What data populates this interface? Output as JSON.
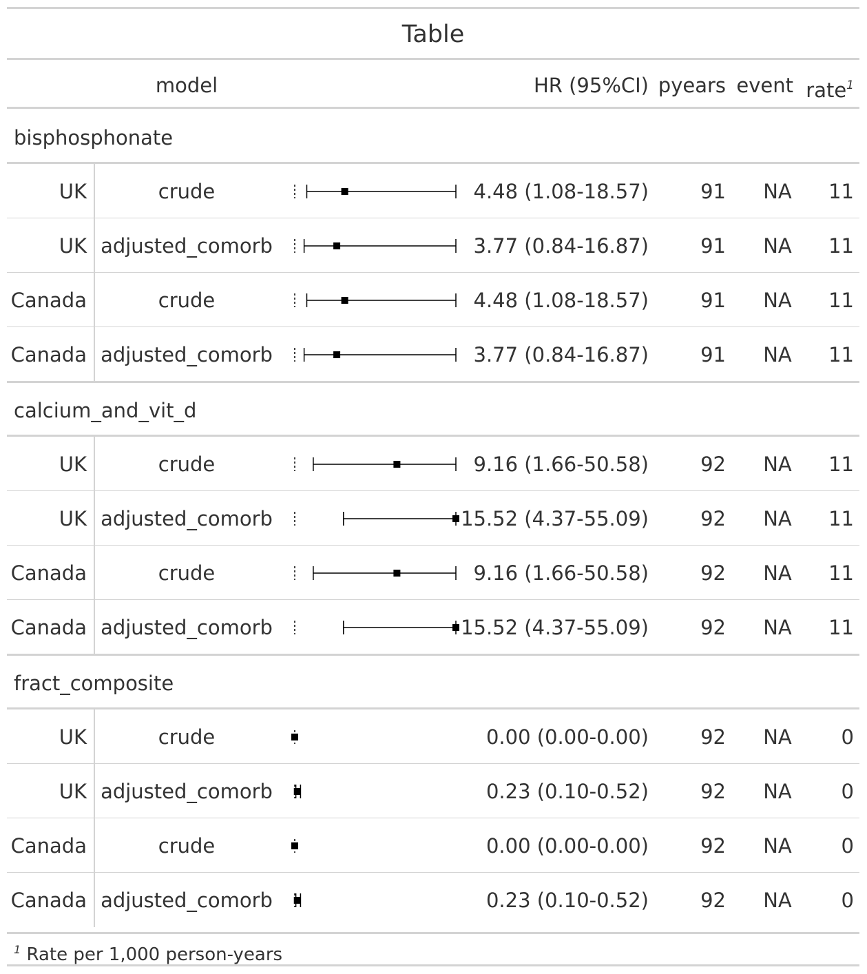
{
  "title": "Table",
  "columns": {
    "model": "model",
    "hr": "HR (95%CI)",
    "pyears": "pyears",
    "event": "event",
    "rate": "rate",
    "rate_footnote_mark": "1"
  },
  "footnote": {
    "mark": "1",
    "text": "Rate per 1,000 person-years"
  },
  "chart_data": {
    "type": "table",
    "title": "Table",
    "forest": {
      "x_min": 0,
      "x_max": 15.52,
      "point_marker": "square"
    },
    "groups": [
      {
        "name": "bisphosphonate",
        "rows": [
          {
            "country": "UK",
            "model": "crude",
            "hr": 4.48,
            "lo": 1.08,
            "hi": 18.57,
            "hr_text": "4.48 (1.08-18.57)",
            "pyears": "91",
            "event": "NA",
            "rate": "11"
          },
          {
            "country": "UK",
            "model": "adjusted_comorb",
            "hr": 3.77,
            "lo": 0.84,
            "hi": 16.87,
            "hr_text": "3.77 (0.84-16.87)",
            "pyears": "91",
            "event": "NA",
            "rate": "11"
          },
          {
            "country": "Canada",
            "model": "crude",
            "hr": 4.48,
            "lo": 1.08,
            "hi": 18.57,
            "hr_text": "4.48 (1.08-18.57)",
            "pyears": "91",
            "event": "NA",
            "rate": "11"
          },
          {
            "country": "Canada",
            "model": "adjusted_comorb",
            "hr": 3.77,
            "lo": 0.84,
            "hi": 16.87,
            "hr_text": "3.77 (0.84-16.87)",
            "pyears": "91",
            "event": "NA",
            "rate": "11"
          }
        ]
      },
      {
        "name": "calcium_and_vit_d",
        "rows": [
          {
            "country": "UK",
            "model": "crude",
            "hr": 9.16,
            "lo": 1.66,
            "hi": 50.58,
            "hr_text": "9.16 (1.66-50.58)",
            "pyears": "92",
            "event": "NA",
            "rate": "11"
          },
          {
            "country": "UK",
            "model": "adjusted_comorb",
            "hr": 15.52,
            "lo": 4.37,
            "hi": 55.09,
            "hr_text": "15.52 (4.37-55.09)",
            "pyears": "92",
            "event": "NA",
            "rate": "11"
          },
          {
            "country": "Canada",
            "model": "crude",
            "hr": 9.16,
            "lo": 1.66,
            "hi": 50.58,
            "hr_text": "9.16 (1.66-50.58)",
            "pyears": "92",
            "event": "NA",
            "rate": "11"
          },
          {
            "country": "Canada",
            "model": "adjusted_comorb",
            "hr": 15.52,
            "lo": 4.37,
            "hi": 55.09,
            "hr_text": "15.52 (4.37-55.09)",
            "pyears": "92",
            "event": "NA",
            "rate": "11"
          }
        ]
      },
      {
        "name": "fract_composite",
        "rows": [
          {
            "country": "UK",
            "model": "crude",
            "hr": 0.0,
            "lo": 0.0,
            "hi": 0.0,
            "hr_text": "0.00 (0.00-0.00)",
            "pyears": "92",
            "event": "NA",
            "rate": "0"
          },
          {
            "country": "UK",
            "model": "adjusted_comorb",
            "hr": 0.23,
            "lo": 0.1,
            "hi": 0.52,
            "hr_text": "0.23 (0.10-0.52)",
            "pyears": "92",
            "event": "NA",
            "rate": "0"
          },
          {
            "country": "Canada",
            "model": "crude",
            "hr": 0.0,
            "lo": 0.0,
            "hi": 0.0,
            "hr_text": "0.00 (0.00-0.00)",
            "pyears": "92",
            "event": "NA",
            "rate": "0"
          },
          {
            "country": "Canada",
            "model": "adjusted_comorb",
            "hr": 0.23,
            "lo": 0.1,
            "hi": 0.52,
            "hr_text": "0.23 (0.10-0.52)",
            "pyears": "92",
            "event": "NA",
            "rate": "0"
          }
        ]
      }
    ]
  }
}
